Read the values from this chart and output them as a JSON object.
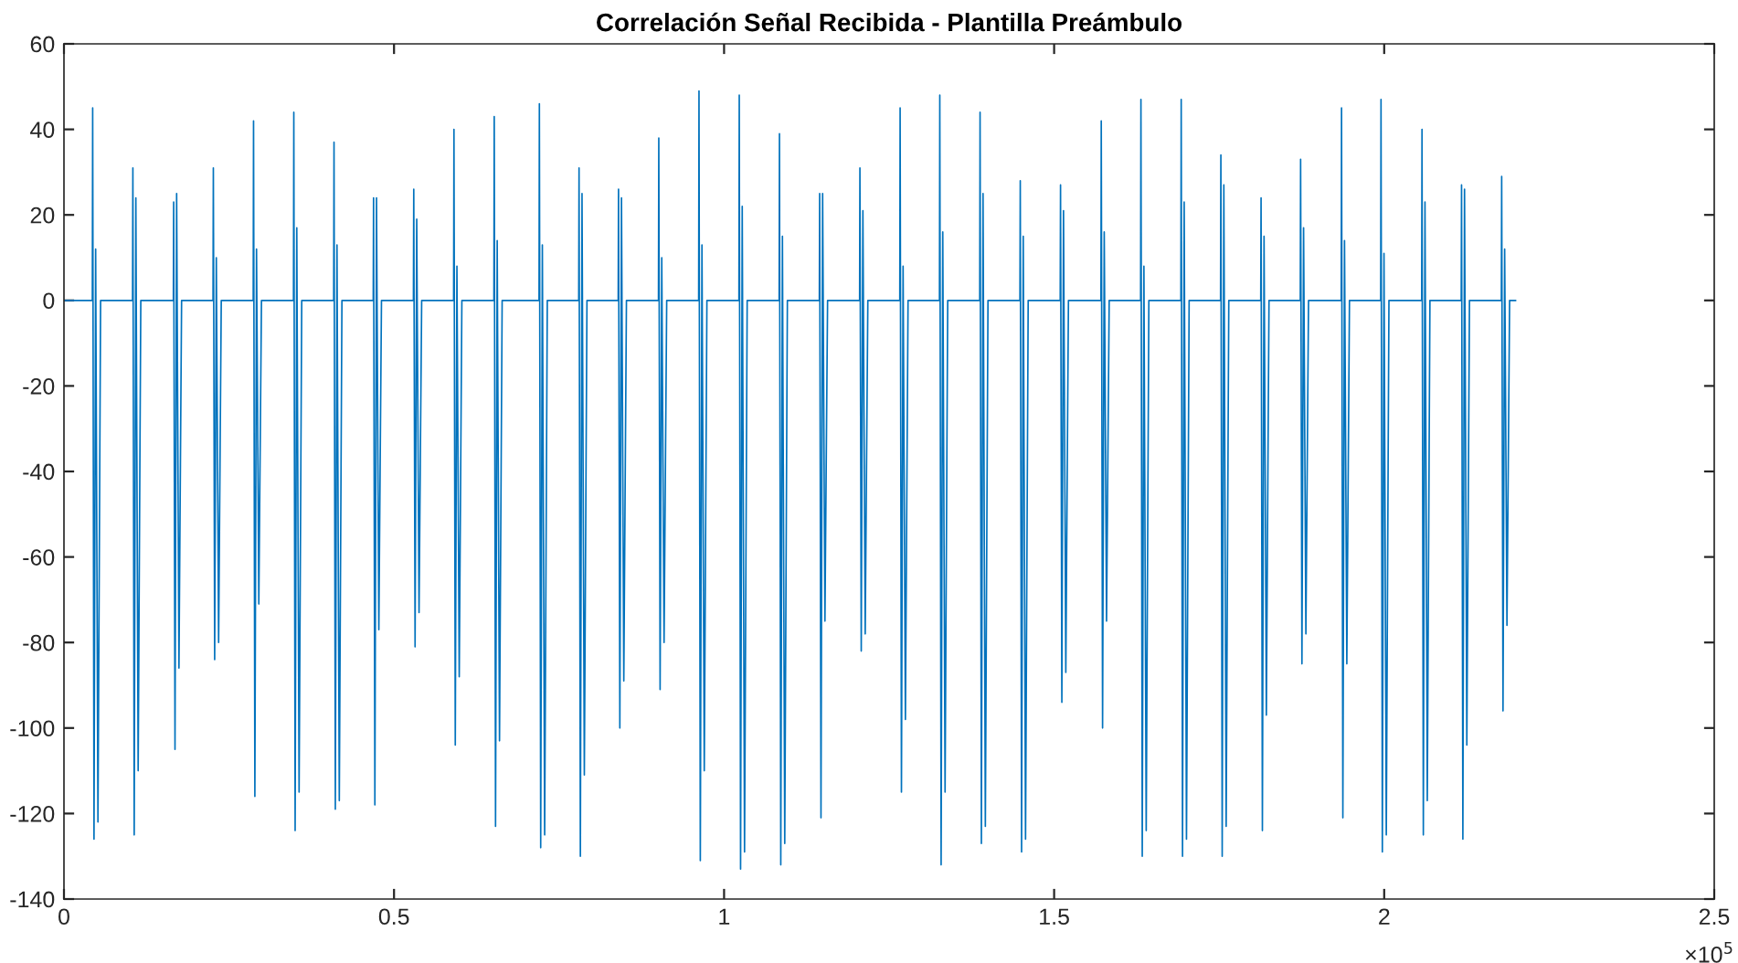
{
  "chart_data": {
    "type": "line",
    "title": "Correlación Señal Recibida - Plantilla Preámbulo",
    "series": [
      {
        "color": "#0072bd",
        "x": [
          0,
          0.043,
          0.0435,
          0.0455,
          0.048,
          0.0515,
          0.0555,
          0.1039,
          0.1044,
          0.1064,
          0.1089,
          0.1124,
          0.1164,
          0.1657,
          0.1662,
          0.1682,
          0.1707,
          0.1742,
          0.1782,
          0.2258,
          0.2263,
          0.2283,
          0.2308,
          0.2343,
          0.2383,
          0.2867,
          0.2872,
          0.2892,
          0.2917,
          0.2952,
          0.2992,
          0.3477,
          0.3482,
          0.3502,
          0.3527,
          0.3562,
          0.3602,
          0.4086,
          0.4091,
          0.4111,
          0.4136,
          0.4171,
          0.4211,
          0.4685,
          0.469,
          0.471,
          0.4735,
          0.477,
          0.481,
          0.5294,
          0.5299,
          0.5319,
          0.5344,
          0.5379,
          0.5419,
          0.5903,
          0.5908,
          0.5928,
          0.5953,
          0.5988,
          0.6028,
          0.6513,
          0.6518,
          0.6538,
          0.6563,
          0.6598,
          0.6638,
          0.7197,
          0.7202,
          0.7222,
          0.7247,
          0.7282,
          0.7322,
          0.7798,
          0.7803,
          0.7823,
          0.7848,
          0.7883,
          0.7923,
          0.8396,
          0.8401,
          0.8421,
          0.8446,
          0.8481,
          0.8521,
          0.9006,
          0.9011,
          0.9031,
          0.9056,
          0.9091,
          0.9131,
          0.9615,
          0.962,
          0.964,
          0.9665,
          0.97,
          0.974,
          1.0225,
          1.023,
          1.025,
          1.0275,
          1.031,
          1.035,
          1.0834,
          1.0839,
          1.0859,
          1.0884,
          1.0919,
          1.0959,
          1.1443,
          1.1448,
          1.1468,
          1.1493,
          1.1528,
          1.1568,
          1.2053,
          1.2058,
          1.2078,
          1.2103,
          1.2138,
          1.2178,
          1.2662,
          1.2667,
          1.2687,
          1.2712,
          1.2747,
          1.2787,
          1.3263,
          1.3268,
          1.3288,
          1.3313,
          1.3348,
          1.3388,
          1.3873,
          1.3878,
          1.3898,
          1.3923,
          1.3958,
          1.3998,
          1.4482,
          1.4487,
          1.4507,
          1.4532,
          1.4567,
          1.4607,
          1.5092,
          1.5097,
          1.5117,
          1.5142,
          1.5177,
          1.5217,
          1.5709,
          1.5714,
          1.5734,
          1.5759,
          1.5794,
          1.5834,
          1.631,
          1.6315,
          1.6335,
          1.636,
          1.6395,
          1.6435,
          1.692,
          1.6925,
          1.6945,
          1.697,
          1.7005,
          1.7045,
          1.7521,
          1.7526,
          1.7546,
          1.7571,
          1.7606,
          1.7646,
          1.813,
          1.8135,
          1.8155,
          1.818,
          1.8215,
          1.8255,
          1.8729,
          1.8734,
          1.8754,
          1.8779,
          1.8814,
          1.8854,
          1.9349,
          1.9354,
          1.9374,
          1.9399,
          1.9434,
          1.9474,
          1.9947,
          1.9952,
          1.9972,
          1.9997,
          2.0032,
          2.0072,
          2.0568,
          2.0573,
          2.0593,
          2.0618,
          2.0653,
          2.0693,
          2.1167,
          2.1172,
          2.1192,
          2.1217,
          2.1252,
          2.1292,
          2.1775,
          2.178,
          2.18,
          2.1825,
          2.186,
          2.19,
          2.199
        ],
        "values": [
          0,
          0,
          45,
          -126,
          12,
          -122,
          0,
          0,
          31,
          -125,
          24,
          -110,
          0,
          0,
          23,
          -105,
          25,
          -86,
          0,
          0,
          31,
          -84,
          10,
          -80,
          0,
          0,
          42,
          -116,
          12,
          -71,
          0,
          0,
          44,
          -124,
          17,
          -115,
          0,
          0,
          37,
          -119,
          13,
          -117,
          0,
          0,
          24,
          -118,
          24,
          -77,
          0,
          0,
          26,
          -81,
          19,
          -73,
          0,
          0,
          40,
          -104,
          8,
          -88,
          0,
          0,
          43,
          -123,
          14,
          -103,
          0,
          0,
          46,
          -128,
          13,
          -125,
          0,
          0,
          31,
          -130,
          25,
          -111,
          0,
          0,
          26,
          -100,
          24,
          -89,
          0,
          0,
          38,
          -91,
          10,
          -80,
          0,
          0,
          49,
          -131,
          13,
          -110,
          0,
          0,
          48,
          -133,
          22,
          -129,
          0,
          0,
          39,
          -132,
          15,
          -127,
          0,
          0,
          25,
          -121,
          25,
          -75,
          0,
          0,
          31,
          -82,
          21,
          -78,
          0,
          0,
          45,
          -115,
          8,
          -98,
          0,
          0,
          48,
          -132,
          16,
          -115,
          0,
          0,
          44,
          -127,
          25,
          -123,
          0,
          0,
          28,
          -129,
          15,
          -126,
          0,
          0,
          27,
          -94,
          21,
          -87,
          0,
          0,
          42,
          -100,
          16,
          -75,
          0,
          0,
          47,
          -130,
          8,
          -124,
          0,
          0,
          47,
          -130,
          23,
          -126,
          0,
          0,
          34,
          -130,
          27,
          -123,
          0,
          0,
          24,
          -124,
          15,
          -97,
          0,
          0,
          33,
          -85,
          17,
          -78,
          0,
          0,
          45,
          -121,
          14,
          -85,
          0,
          0,
          47,
          -129,
          11,
          -125,
          0,
          0,
          40,
          -125,
          23,
          -117,
          0,
          0,
          27,
          -126,
          26,
          -104,
          0,
          0,
          29,
          -96,
          12,
          -76,
          0,
          0
        ]
      }
    ],
    "xlim": [
      0,
      2.5
    ],
    "xticks": [
      0,
      0.5,
      1,
      1.5,
      2,
      2.5
    ],
    "ylim": [
      -140,
      60
    ],
    "yticks": [
      -140,
      -120,
      -100,
      -80,
      -60,
      -40,
      -20,
      0,
      20,
      40,
      60
    ],
    "annotations": [
      "×10$^{5}$"
    ],
    "grid": false,
    "legend": false,
    "marker": "none",
    "line_style": "solid"
  }
}
